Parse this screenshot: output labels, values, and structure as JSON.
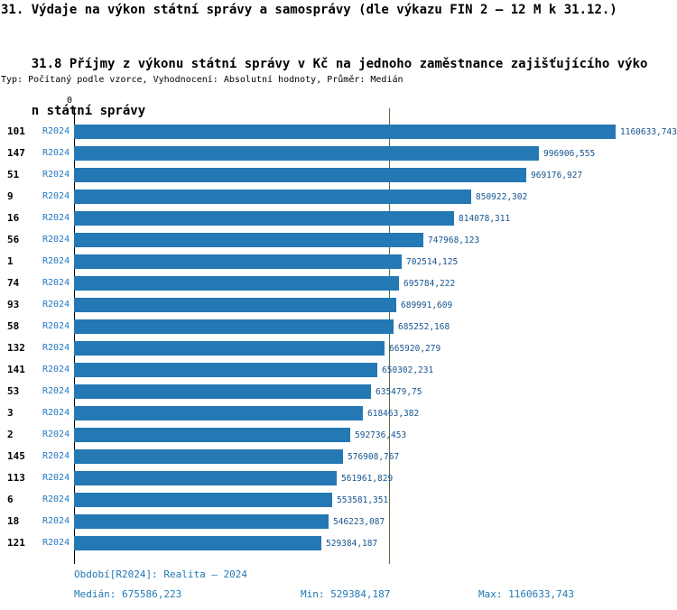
{
  "header": {
    "title": "31. Výdaje na výkon státní správy a samosprávy (dle výkazu FIN 2 – 12 M k 31.12.)",
    "subtitle_line1": "31.8 Příjmy z výkonu státní správy v Kč na jednoho zaměstnance zajišťujícího výko",
    "subtitle_line2": "n státní správy",
    "meta": "Typ: Počítaný podle vzorce, Vyhodnocení: Absolutní hodnoty, Průměr: Medián"
  },
  "chart_data": {
    "type": "bar",
    "orientation": "horizontal",
    "x_axis_zero": "0",
    "series_name": "R2024",
    "categories": [
      "101",
      "147",
      "51",
      "9",
      "16",
      "56",
      "1",
      "74",
      "93",
      "58",
      "132",
      "141",
      "53",
      "3",
      "2",
      "145",
      "113",
      "6",
      "18",
      "121"
    ],
    "values": [
      1160633.743,
      996906.555,
      969176.927,
      850922.302,
      814078.311,
      747968.123,
      702514.125,
      695784.222,
      689991.609,
      685252.168,
      665920.279,
      650302.231,
      635479.75,
      618463.382,
      592736.453,
      576908.767,
      561961.829,
      553581.351,
      546223.087,
      529384.187
    ],
    "value_labels": [
      "1160633,743",
      "996906,555",
      "969176,927",
      "850922,302",
      "814078,311",
      "747968,123",
      "702514,125",
      "695784,222",
      "689991,609",
      "685252,168",
      "665920,279",
      "650302,231",
      "635479,75",
      "618463,382",
      "592736,453",
      "576908,767",
      "561961,829",
      "553581,351",
      "546223,087",
      "529384,187"
    ],
    "median": 675586.223,
    "xlim": [
      0,
      1160633.743
    ],
    "grid": false,
    "legend": "none",
    "colors": {
      "bar": "#2478b4",
      "value_label": "#16558f",
      "series_label": "#2478c4",
      "median_line": "#50743c",
      "footer_text": "#1f78b4"
    }
  },
  "footer": {
    "period": "Období[R2024]: Realita – 2024",
    "median": "Medián: 675586,223",
    "min": "Min: 529384,187",
    "max": "Max: 1160633,743"
  }
}
